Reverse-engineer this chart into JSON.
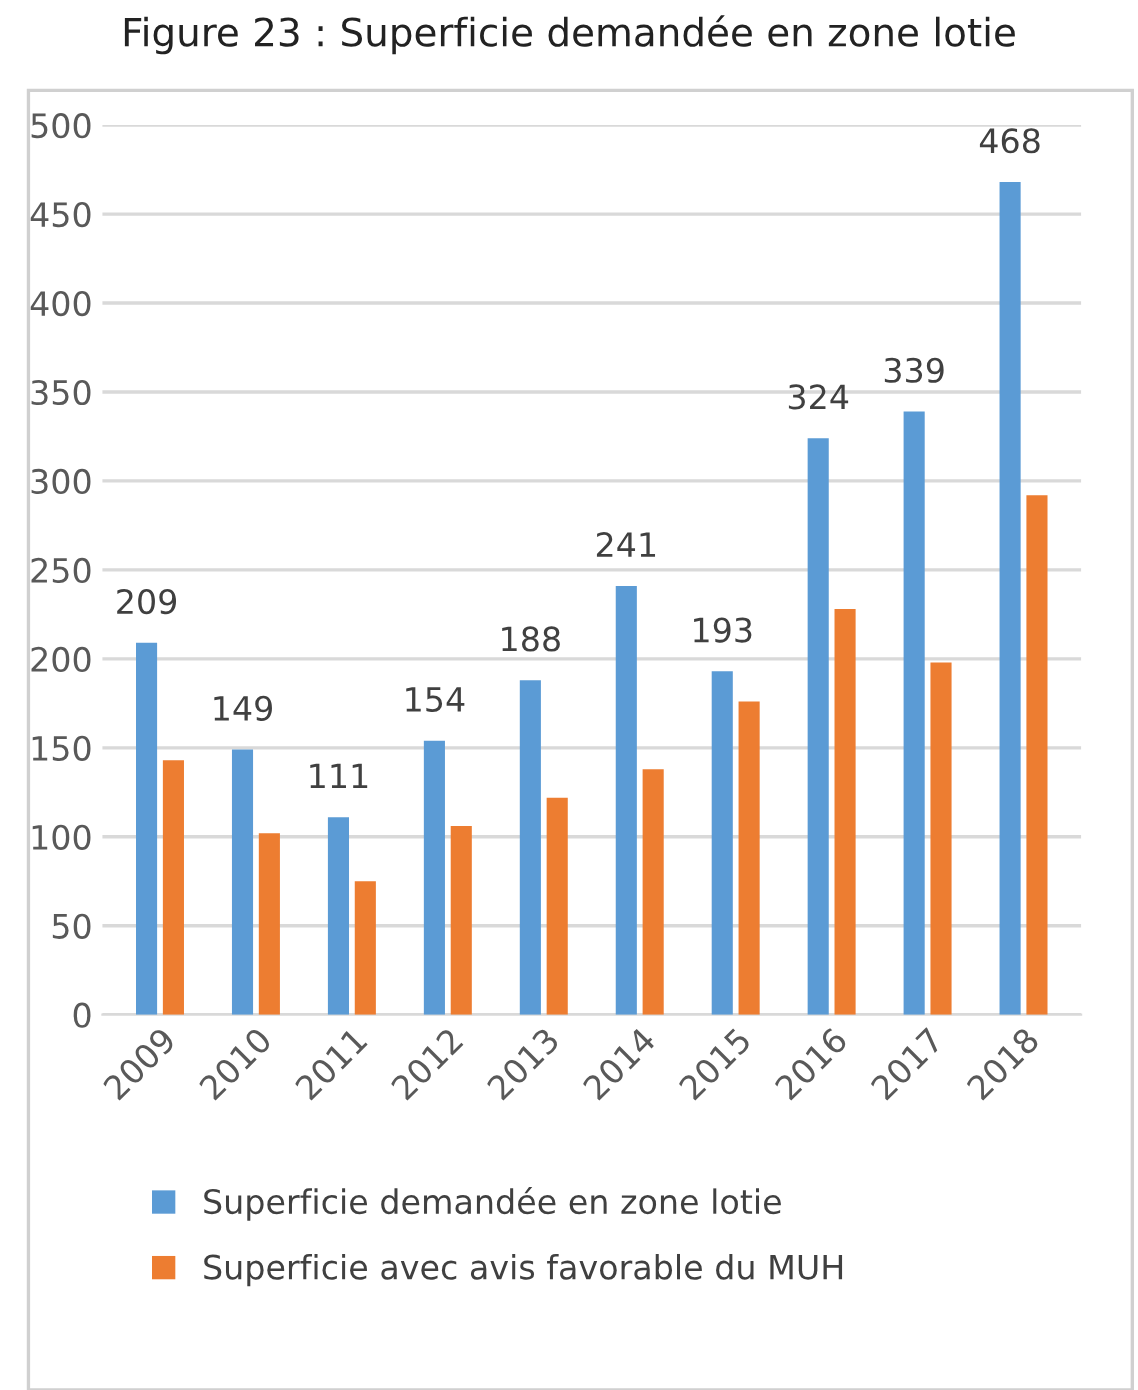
{
  "chart_data": {
    "type": "bar",
    "title": "Figure 23 : Superficie demandée en zone lotie",
    "categories": [
      "2009",
      "2010",
      "2011",
      "2012",
      "2013",
      "2014",
      "2015",
      "2016",
      "2017",
      "2018"
    ],
    "series": [
      {
        "name": "Superficie demandée en zone lotie",
        "color": "#5b9bd5",
        "values": [
          209,
          149,
          111,
          154,
          188,
          241,
          193,
          324,
          339,
          468
        ],
        "value_labels": [
          "209",
          "149",
          "111",
          "154",
          "188",
          "241",
          "193",
          "324",
          "339",
          "468"
        ]
      },
      {
        "name": "Superficie avec avis favorable du MUH",
        "color": "#ed7d31",
        "values": [
          143,
          102,
          75,
          106,
          122,
          138,
          176,
          228,
          198,
          292
        ]
      }
    ],
    "ylim": [
      0,
      500
    ],
    "yticks": [
      0,
      50,
      100,
      150,
      200,
      250,
      300,
      350,
      400,
      450,
      500
    ],
    "grid": "y",
    "legend": "bottom"
  }
}
